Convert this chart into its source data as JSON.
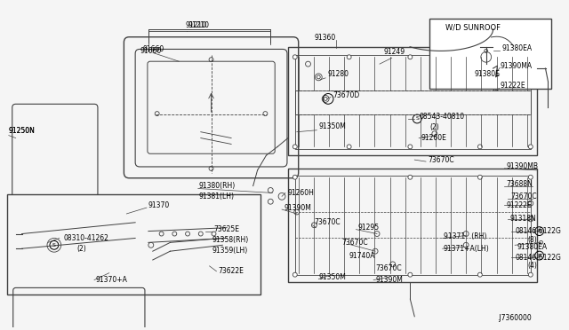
{
  "bg_color": "#f5f5f5",
  "line_color": "#404040",
  "text_color": "#000000",
  "diagram_number": ".J7360000",
  "sunroof_box_label": "W/D SUNROOF",
  "sunroof_box_part": "91380E",
  "font_size": 5.8
}
